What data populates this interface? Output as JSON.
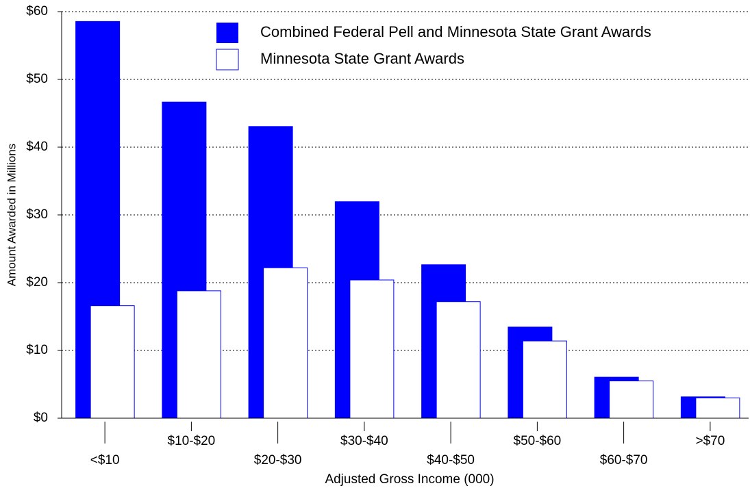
{
  "chart_data": {
    "type": "bar",
    "x_label": "Adjusted Gross Income (000)",
    "y_label": "Amount Awarded in Millions",
    "categories": [
      "<$10",
      "$10-$20",
      "$20-$30",
      "$30-$40",
      "$40-$50",
      "$50-$60",
      "$60-$70",
      ">$70"
    ],
    "series": [
      {
        "name": "Combined Federal Pell and Minnesota State Grant Awards",
        "color": "#0000ff",
        "values": [
          58.6,
          46.7,
          43.1,
          32.0,
          22.7,
          13.5,
          6.1,
          3.2
        ]
      },
      {
        "name": "Minnesota State Grant Awards",
        "color": "#ffffff",
        "values": [
          16.6,
          18.8,
          22.2,
          20.4,
          17.2,
          11.4,
          5.5,
          3.0
        ]
      }
    ],
    "ylim": [
      0,
      60
    ],
    "yticks": [
      {
        "value": 0,
        "label": "$0"
      },
      {
        "value": 10,
        "label": "$10"
      },
      {
        "value": 20,
        "label": "$20"
      },
      {
        "value": 30,
        "label": "$30"
      },
      {
        "value": 40,
        "label": "$40"
      },
      {
        "value": 50,
        "label": "$50"
      },
      {
        "value": 60,
        "label": "$60"
      }
    ],
    "grid": true
  }
}
